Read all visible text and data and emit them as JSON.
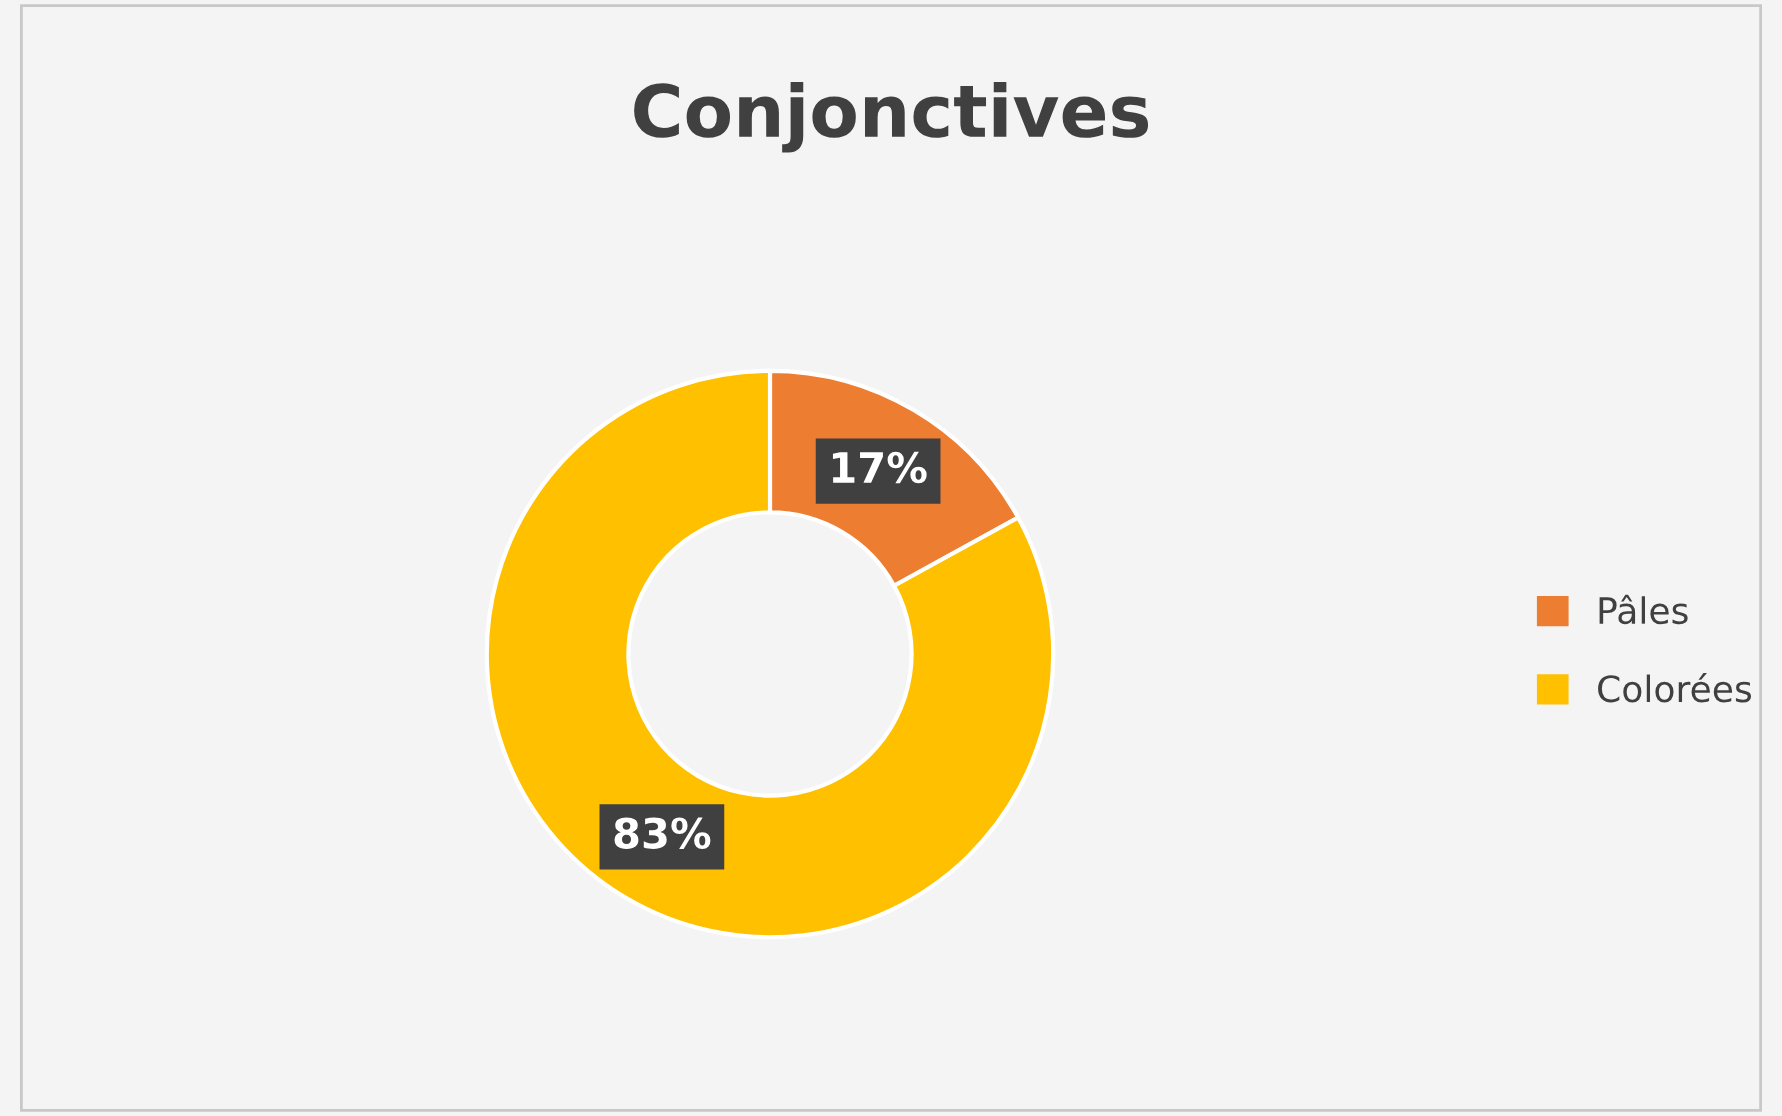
{
  "chart_data": {
    "type": "donut",
    "title": "Conjonctives",
    "categories": [
      "Pâles",
      "Colorées"
    ],
    "values": [
      17,
      83
    ],
    "colors": [
      "#ed7d31",
      "#ffc000"
    ],
    "value_labels": [
      "17%",
      "83%"
    ],
    "legend": "right"
  }
}
